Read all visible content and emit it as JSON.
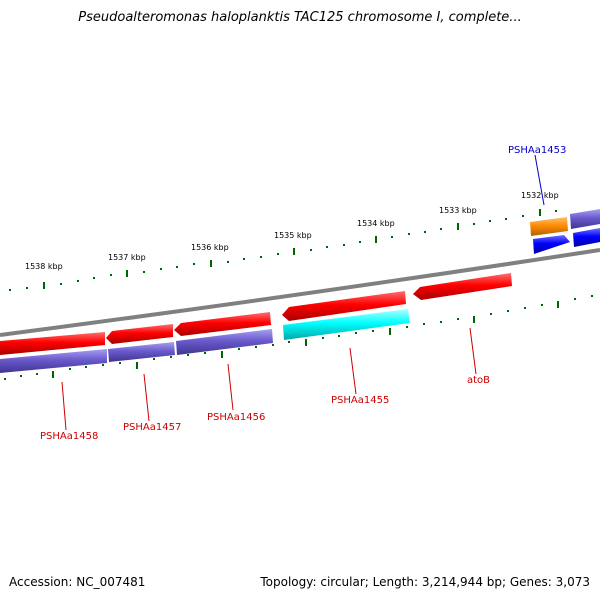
{
  "title": "Pseudoalteromonas haloplanktis TAC125 chromosome I, complete...",
  "footer": {
    "accession": "Accession: NC_007481",
    "topology": "Topology: circular; Length: 3,214,944 bp; Genes: 3,073"
  },
  "scale_labels": [
    "1538 kbp",
    "1537 kbp",
    "1536 kbp",
    "1535 kbp",
    "1534 kbp",
    "1533 kbp",
    "1532 kbp"
  ],
  "gene_labels": [
    {
      "text": "PSHAa1458",
      "color": "#cc0000"
    },
    {
      "text": "PSHAa1457",
      "color": "#cc0000"
    },
    {
      "text": "PSHAa1456",
      "color": "#cc0000"
    },
    {
      "text": "PSHAa1455",
      "color": "#cc0000"
    },
    {
      "text": "atoB",
      "color": "#cc0000"
    },
    {
      "text": "PSHAa1453",
      "color": "#0000cc"
    }
  ],
  "colors": {
    "backbone": "#808080",
    "cds_red": "#ff0000",
    "cds_purple": "#6a5acd",
    "cds_cyan": "#00ffff",
    "cds_blue": "#0000ff",
    "cds_orange": "#ff8c00",
    "tick": "#006400"
  }
}
